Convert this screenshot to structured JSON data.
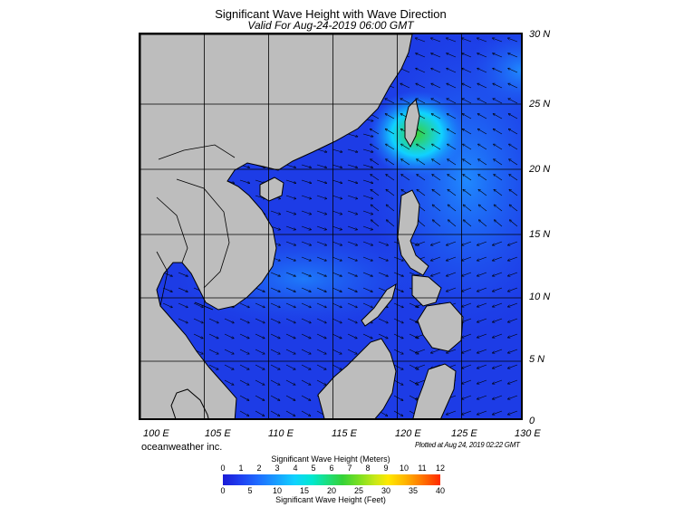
{
  "title": "Significant Wave Height with Wave Direction",
  "subtitle": "Valid For Aug-24-2019 06:00 GMT",
  "lat_labels": [
    "30 N",
    "25 N",
    "20 N",
    "15 N",
    "10 N",
    "5 N",
    "0"
  ],
  "lon_labels": [
    "100 E",
    "105 E",
    "110 E",
    "115 E",
    "120 E",
    "125 E",
    "130 E"
  ],
  "brand": "oceanweather inc.",
  "plotted": "Plotted at Aug 24, 2019 02:22 GMT",
  "colorbar": {
    "meters_title": "Significant Wave Height (Meters)",
    "meters_ticks": [
      "0",
      "1",
      "2",
      "3",
      "4",
      "5",
      "6",
      "7",
      "8",
      "9",
      "10",
      "11",
      "12"
    ],
    "feet_title": "Significant Wave Height (Feet)",
    "feet_ticks": [
      "0",
      "5",
      "10",
      "15",
      "20",
      "25",
      "30",
      "35",
      "40"
    ]
  },
  "colors": {
    "land": "#bdbdbd",
    "low_wave": "#1b1bd6",
    "high_wave": "#34d238"
  }
}
